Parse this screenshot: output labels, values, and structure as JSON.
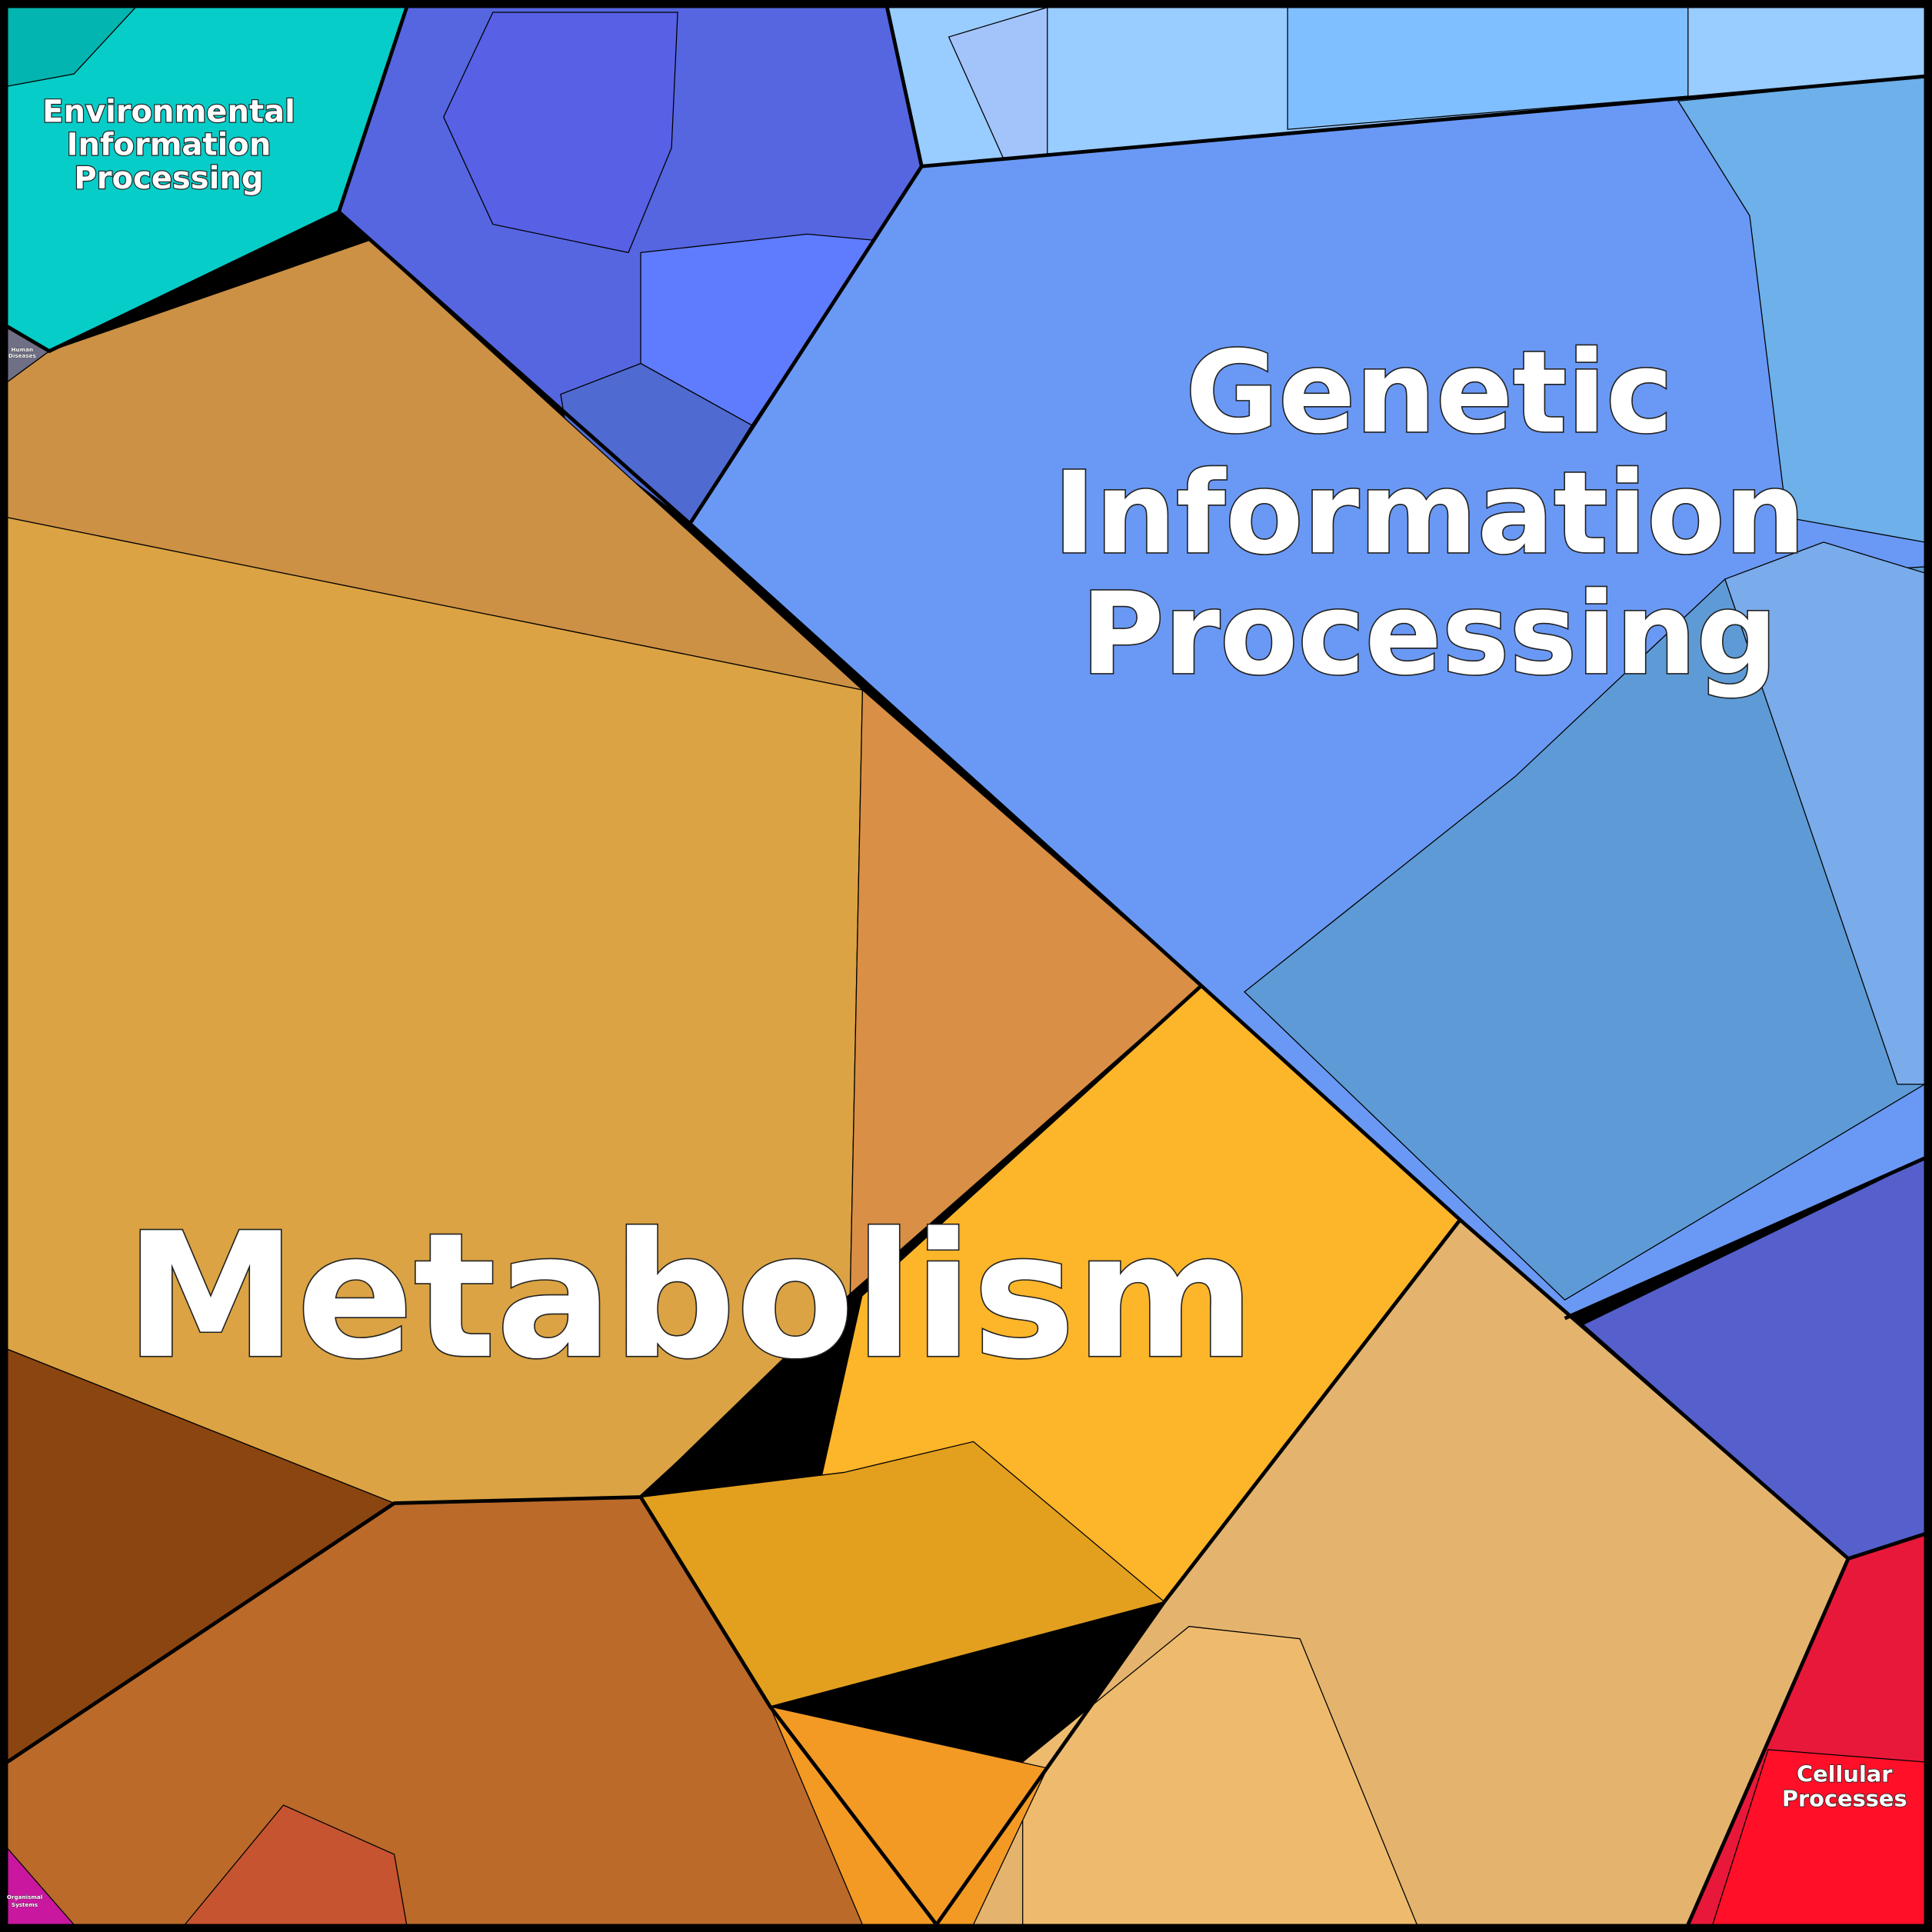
{
  "regions": [
    {
      "label_lines": [
        "Environmental",
        "Information",
        "Processing"
      ]
    },
    {
      "label_lines": [
        "Genetic",
        "Information",
        "Processing"
      ]
    },
    {
      "label_lines": [
        "Metabolism"
      ]
    },
    {
      "label_lines": [
        "Cellular",
        "Processes"
      ]
    },
    {
      "label_lines": [
        "Human",
        "Diseases"
      ]
    },
    {
      "label_lines": [
        "Organismal",
        "Systems"
      ]
    }
  ]
}
